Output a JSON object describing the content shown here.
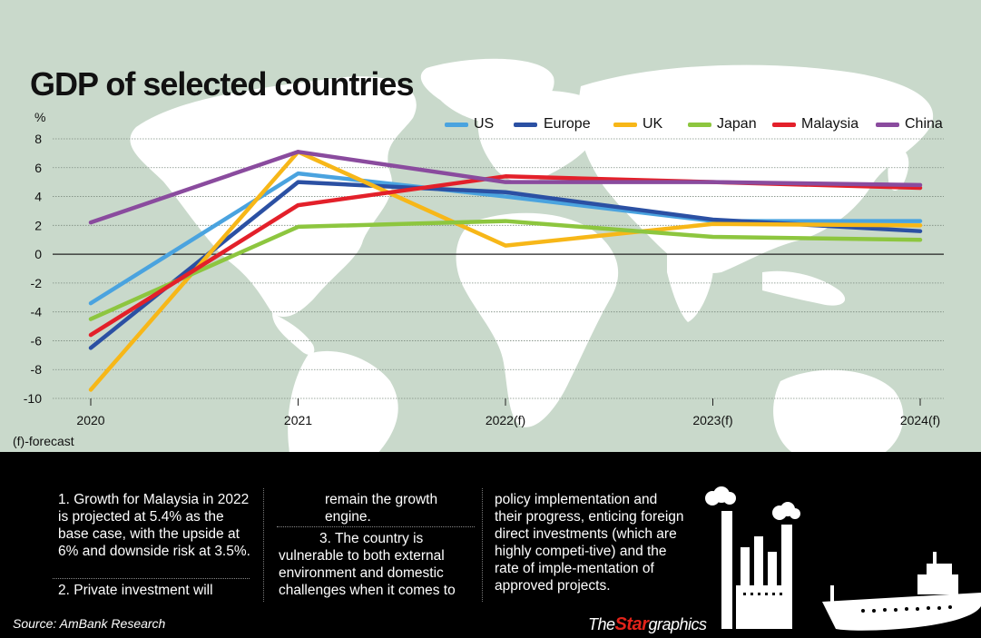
{
  "title": "GDP of selected countries",
  "unit_label": "%",
  "forecast_note": "(f)-forecast",
  "source": "Source: AmBank Research",
  "brand": {
    "the": "The",
    "star": "Star",
    "graphics": "graphics"
  },
  "notes": {
    "col1_p1": "1. Growth for Malaysia in 2022 is projected at 5.4% as the base case, with the upside at 6% and downside risk at 3.5%.",
    "col1_p2": "2. Private investment will",
    "col2_p1": "remain the growth engine.",
    "col2_p2": "3. The country is vulnerable to both  external environment and domestic challenges when it comes to",
    "col3_p1": "policy implementation and their progress, enticing foreign direct investments (which are highly competi-tive) and the rate of imple-mentation of approved projects."
  },
  "colors": {
    "background": "#c9d9cb",
    "land": "#ffffff",
    "US": "#4aa3df",
    "Europe": "#2b50a3",
    "UK": "#f7b718",
    "Japan": "#8dc63f",
    "Malaysia": "#e3202a",
    "China": "#8a4b9e"
  },
  "chart_data": {
    "type": "line",
    "title": "GDP of selected countries",
    "ylabel": "%",
    "xlabel": "",
    "x": [
      "2020",
      "2021",
      "2022(f)",
      "2023(f)",
      "2024(f)"
    ],
    "ylim": [
      -10,
      8
    ],
    "yticks": [
      8,
      6,
      4,
      2,
      0,
      -2,
      -4,
      -6,
      -8,
      -10
    ],
    "grid": true,
    "legend_position": "top-right",
    "series": [
      {
        "name": "US",
        "values": [
          -3.4,
          5.6,
          4.0,
          2.3,
          2.3
        ]
      },
      {
        "name": "Europe",
        "values": [
          -6.5,
          5.0,
          4.3,
          2.4,
          1.6
        ]
      },
      {
        "name": "UK",
        "values": [
          -9.4,
          7.1,
          0.6,
          2.1,
          2.0
        ]
      },
      {
        "name": "Japan",
        "values": [
          -4.5,
          1.9,
          2.3,
          1.2,
          1.0
        ]
      },
      {
        "name": "Malaysia",
        "values": [
          -5.6,
          3.4,
          5.4,
          5.0,
          4.6
        ]
      },
      {
        "name": "China",
        "values": [
          2.2,
          7.1,
          5.0,
          5.0,
          4.8
        ]
      }
    ]
  }
}
